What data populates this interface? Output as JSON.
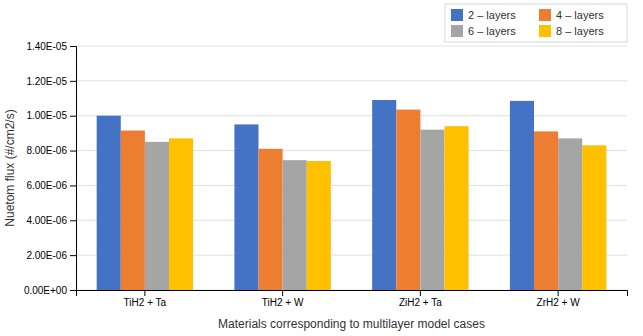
{
  "chart_data": {
    "type": "bar",
    "xlabel": "Materials corresponding to multilayer model cases",
    "ylabel": "Nuetom flux (#/cm2/s)",
    "categories": [
      "TiH2 + Ta",
      "TiH2 + W",
      "ZiH2 + Ta",
      "ZrH2 + W"
    ],
    "series": [
      {
        "name": "2 – layers",
        "color": "#4472C4",
        "values": [
          1e-05,
          9.5e-06,
          1.09e-05,
          1.085e-05
        ]
      },
      {
        "name": "4 – layers",
        "color": "#ED7D31",
        "values": [
          9.15e-06,
          8.1e-06,
          1.035e-05,
          9.1e-06
        ]
      },
      {
        "name": "6 – layers",
        "color": "#A5A5A5",
        "values": [
          8.5e-06,
          7.45e-06,
          9.2e-06,
          8.7e-06
        ]
      },
      {
        "name": "8 – layers",
        "color": "#FFC000",
        "values": [
          8.7e-06,
          7.4e-06,
          9.4e-06,
          8.3e-06
        ]
      }
    ],
    "ylim": [
      0,
      1.4e-05
    ],
    "yticks": [
      {
        "value": 0,
        "label": "0.00E+00"
      },
      {
        "value": 2e-06,
        "label": "2.00E-06"
      },
      {
        "value": 4e-06,
        "label": "4.00E-06"
      },
      {
        "value": 6e-06,
        "label": "6.00E-06"
      },
      {
        "value": 8e-06,
        "label": "8.00E-06"
      },
      {
        "value": 1e-05,
        "label": "1.00E-05"
      },
      {
        "value": 1.2e-05,
        "label": "1.20E-05"
      },
      {
        "value": 1.4e-05,
        "label": "1.40E-05"
      }
    ],
    "grid": true,
    "legend": "upper right"
  }
}
